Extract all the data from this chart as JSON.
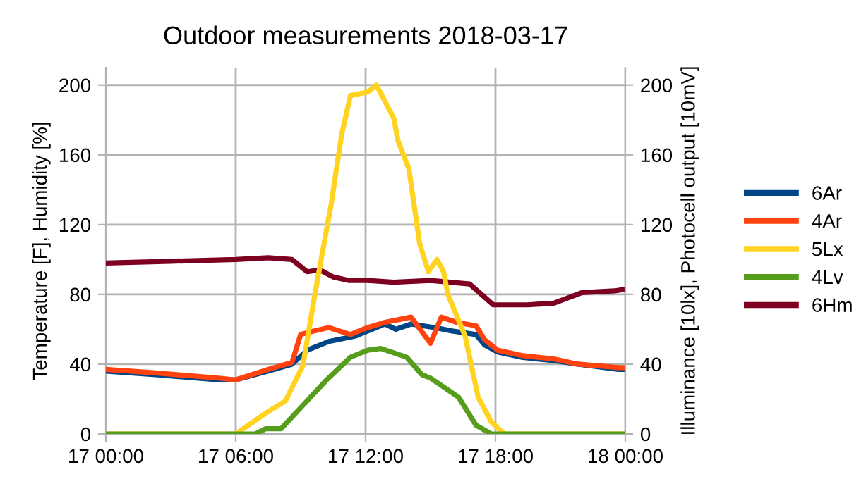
{
  "chart_data": {
    "type": "line",
    "title": "Outdoor measurements 2018-03-17",
    "ylabel": "Temperature [F], Humidity [%]",
    "y2label": "Illuminance [10lx], Photocell output [10mV]",
    "xlim": [
      "2018-03-17T00:00",
      "2018-03-18T00:00"
    ],
    "xticks": [
      {
        "value": "2018-03-17T00:00",
        "label": "17 00:00"
      },
      {
        "value": "2018-03-17T06:00",
        "label": "17 06:00"
      },
      {
        "value": "2018-03-17T12:00",
        "label": "17 12:00"
      },
      {
        "value": "2018-03-17T18:00",
        "label": "17 18:00"
      },
      {
        "value": "2018-03-18T00:00",
        "label": "18 00:00"
      }
    ],
    "ylim": [
      0,
      210
    ],
    "yticks": [
      0,
      40,
      80,
      120,
      160,
      200
    ],
    "y2lim": [
      0,
      210
    ],
    "y2ticks": [
      0,
      40,
      80,
      120,
      160,
      200
    ],
    "grid": true,
    "legend": "right",
    "marker": "none",
    "line_style": "solid",
    "series": [
      {
        "name": "6Ar",
        "color": "#004586",
        "x": [
          "2018-03-17T00:00",
          "2018-03-17T02:18",
          "2018-03-17T05:12",
          "2018-03-17T06:00",
          "2018-03-17T07:30",
          "2018-03-17T08:36",
          "2018-03-17T09:18",
          "2018-03-17T10:18",
          "2018-03-17T11:30",
          "2018-03-17T12:06",
          "2018-03-17T12:54",
          "2018-03-17T13:24",
          "2018-03-17T14:06",
          "2018-03-17T15:12",
          "2018-03-17T16:00",
          "2018-03-17T17:06",
          "2018-03-17T17:30",
          "2018-03-17T18:06",
          "2018-03-17T19:12",
          "2018-03-17T20:42",
          "2018-03-17T21:48",
          "2018-03-17T23:42",
          "2018-03-18T00:00"
        ],
        "values": [
          36,
          34,
          31,
          31,
          36,
          40,
          48,
          53,
          56,
          59,
          63,
          60,
          63,
          61,
          59,
          57,
          51,
          47,
          44,
          42,
          40,
          37,
          37
        ]
      },
      {
        "name": "4Ar",
        "color": "#ff420e",
        "x": [
          "2018-03-17T00:00",
          "2018-03-17T02:18",
          "2018-03-17T05:12",
          "2018-03-17T06:00",
          "2018-03-17T07:30",
          "2018-03-17T08:36",
          "2018-03-17T09:00",
          "2018-03-17T09:36",
          "2018-03-17T10:18",
          "2018-03-17T11:18",
          "2018-03-17T12:06",
          "2018-03-17T12:54",
          "2018-03-17T14:06",
          "2018-03-17T15:00",
          "2018-03-17T15:30",
          "2018-03-17T16:12",
          "2018-03-17T17:06",
          "2018-03-17T17:30",
          "2018-03-17T18:06",
          "2018-03-17T19:12",
          "2018-03-17T20:42",
          "2018-03-17T21:48",
          "2018-03-17T23:42",
          "2018-03-18T00:00"
        ],
        "values": [
          37,
          35,
          32,
          31,
          37,
          41,
          57,
          59,
          61,
          57,
          61,
          64,
          67,
          52,
          67,
          64,
          62,
          54,
          48,
          45,
          43,
          40,
          38,
          38
        ]
      },
      {
        "name": "5Lx",
        "color": "#ffd320",
        "axis": "y2",
        "x": [
          "2018-03-17T00:00",
          "2018-03-17T06:00",
          "2018-03-17T07:24",
          "2018-03-17T08:18",
          "2018-03-17T09:06",
          "2018-03-17T09:42",
          "2018-03-17T10:24",
          "2018-03-17T10:54",
          "2018-03-17T11:18",
          "2018-03-17T12:06",
          "2018-03-17T12:30",
          "2018-03-17T13:18",
          "2018-03-17T13:30",
          "2018-03-17T14:00",
          "2018-03-17T14:30",
          "2018-03-17T14:54",
          "2018-03-17T15:18",
          "2018-03-17T15:36",
          "2018-03-17T15:48",
          "2018-03-17T16:36",
          "2018-03-17T17:12",
          "2018-03-17T17:48",
          "2018-03-17T18:24",
          "2018-03-18T00:00"
        ],
        "values": [
          0,
          0,
          12,
          19,
          39,
          83,
          131,
          172,
          194,
          196,
          200,
          181,
          168,
          152,
          109,
          93,
          100,
          93,
          80,
          56,
          21,
          7,
          0,
          0
        ]
      },
      {
        "name": "4Lv",
        "color": "#579d1c",
        "axis": "y2",
        "x": [
          "2018-03-17T00:00",
          "2018-03-17T06:54",
          "2018-03-17T07:24",
          "2018-03-17T08:06",
          "2018-03-17T09:00",
          "2018-03-17T10:12",
          "2018-03-17T11:18",
          "2018-03-17T12:06",
          "2018-03-17T12:42",
          "2018-03-17T13:54",
          "2018-03-17T14:36",
          "2018-03-17T15:00",
          "2018-03-17T15:36",
          "2018-03-17T16:18",
          "2018-03-17T17:06",
          "2018-03-17T17:48",
          "2018-03-18T00:00"
        ],
        "values": [
          0,
          0,
          3,
          3,
          15,
          31,
          44,
          48,
          49,
          44,
          34,
          32,
          27,
          21,
          5,
          0,
          0
        ]
      },
      {
        "name": "6Hm",
        "color": "#7e0021",
        "x": [
          "2018-03-17T00:00",
          "2018-03-17T03:00",
          "2018-03-17T06:00",
          "2018-03-17T07:30",
          "2018-03-17T08:36",
          "2018-03-17T09:18",
          "2018-03-17T09:54",
          "2018-03-17T10:30",
          "2018-03-17T11:12",
          "2018-03-17T12:06",
          "2018-03-17T13:18",
          "2018-03-17T15:00",
          "2018-03-17T16:48",
          "2018-03-17T17:54",
          "2018-03-17T19:30",
          "2018-03-17T20:42",
          "2018-03-17T22:00",
          "2018-03-17T23:30",
          "2018-03-18T00:00"
        ],
        "values": [
          98,
          99,
          100,
          101,
          100,
          93,
          94,
          90,
          88,
          88,
          87,
          88,
          86,
          74,
          74,
          75,
          81,
          82,
          83
        ]
      }
    ]
  }
}
